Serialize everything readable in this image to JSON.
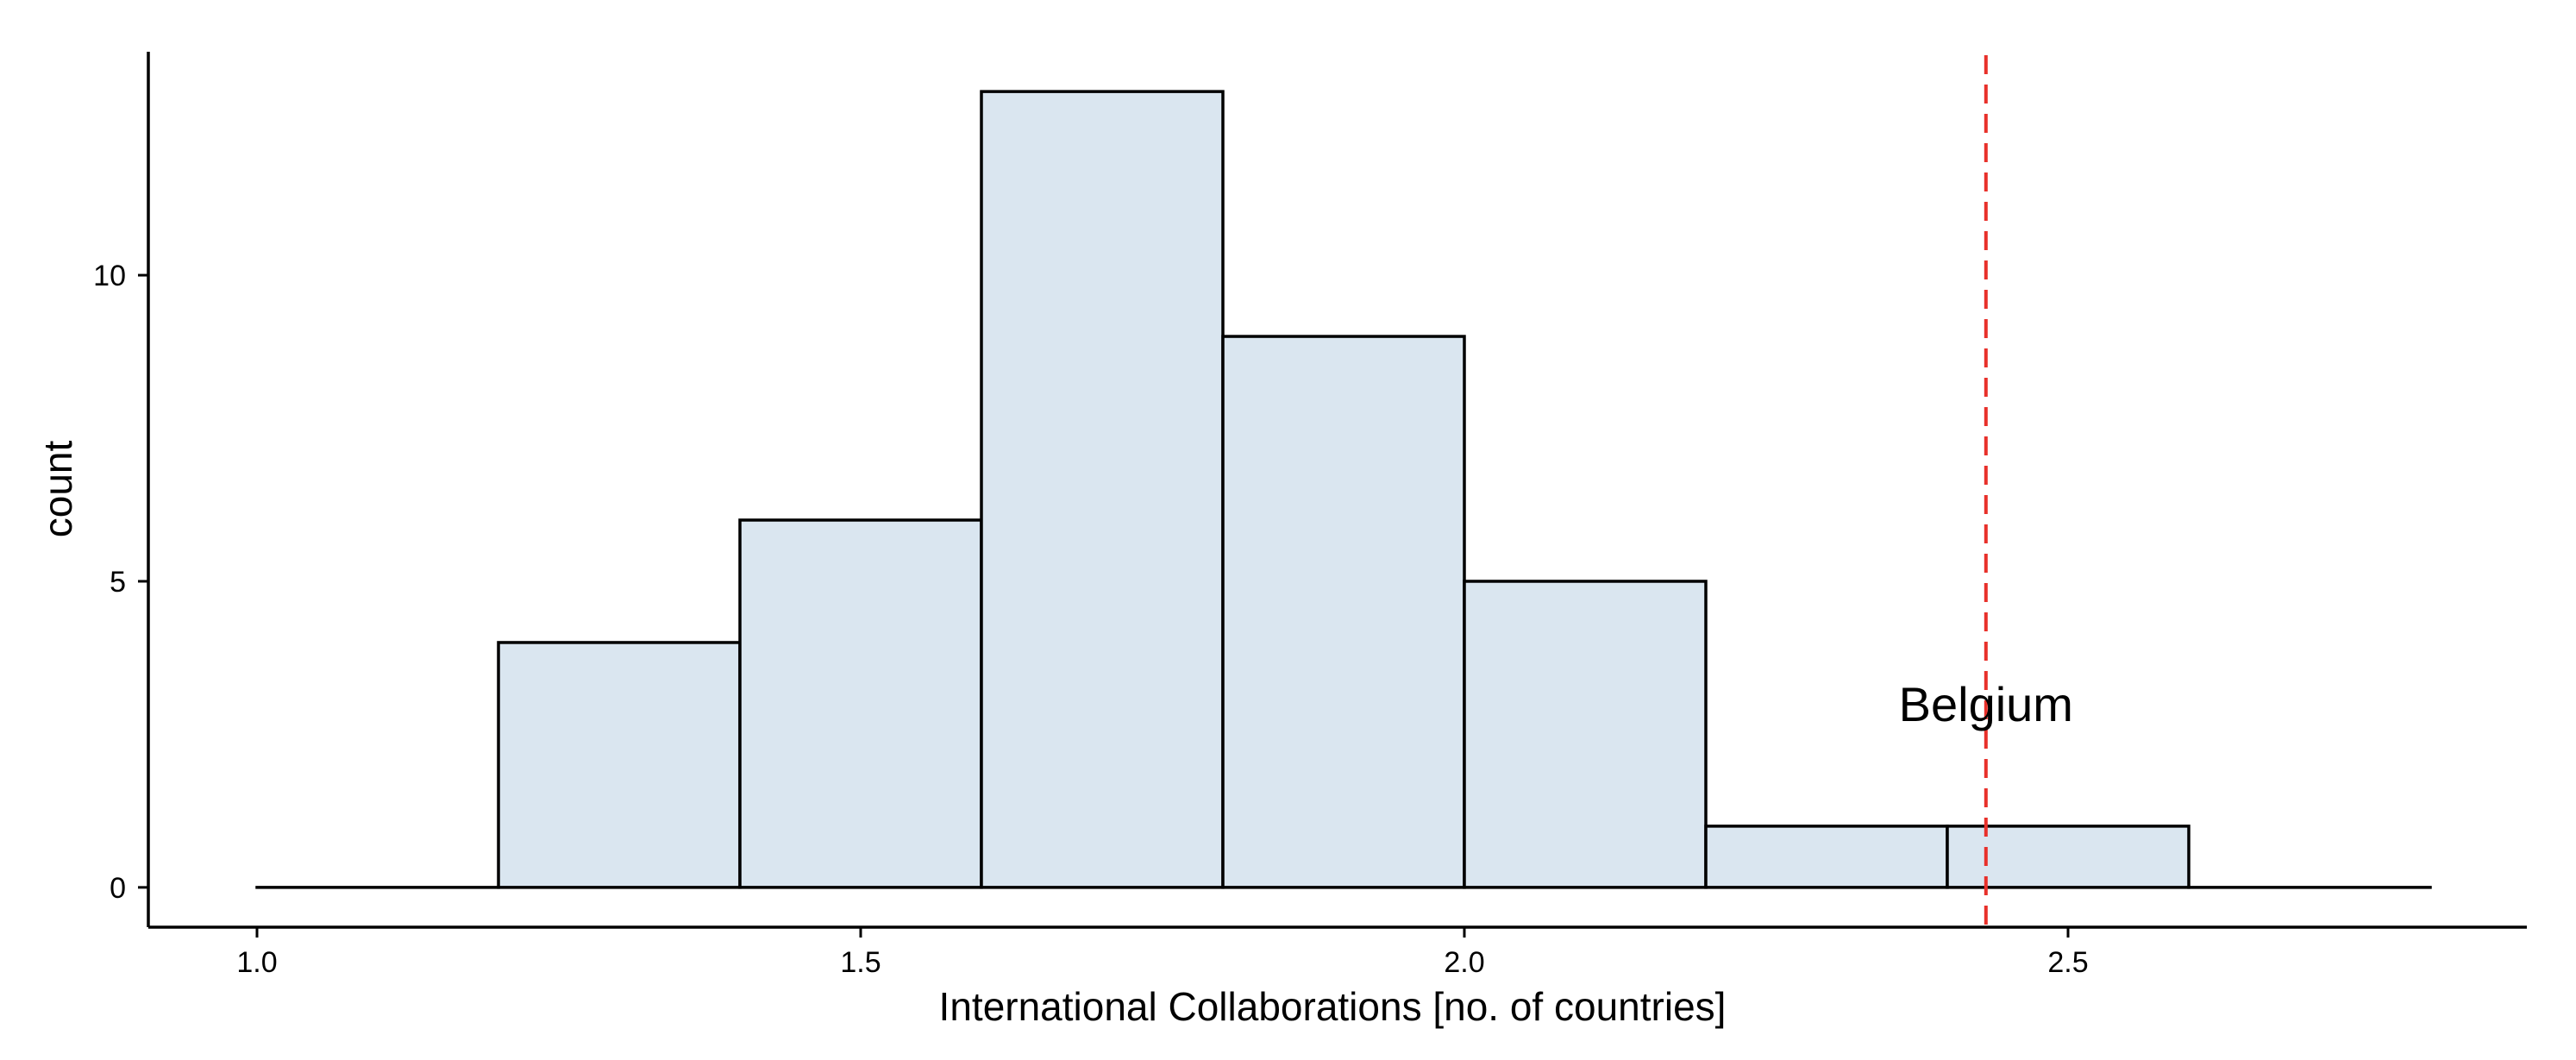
{
  "chart_data": {
    "type": "histogram",
    "title": "",
    "xlabel": "International Collaborations [no. of countries]",
    "ylabel": "count",
    "xlim": [
      0.91,
      2.88
    ],
    "ylim": [
      -0.65,
      13.65
    ],
    "x_ticks": [
      1.0,
      1.5,
      2.0,
      2.5
    ],
    "x_tick_labels": [
      "1.0",
      "1.5",
      "2.0",
      "2.5"
    ],
    "y_ticks": [
      0,
      5,
      10
    ],
    "y_tick_labels": [
      "0",
      "5",
      "10"
    ],
    "bin_edges": [
      1.0,
      1.2,
      1.4,
      1.6,
      1.8,
      2.0,
      2.2,
      2.4,
      2.6,
      2.8
    ],
    "counts": [
      0,
      4,
      6,
      13,
      9,
      5,
      1,
      1,
      0
    ],
    "bar_fill": "#dae6f0",
    "bar_stroke": "#000000",
    "reference_line": {
      "x": 2.432,
      "label": "Belgium",
      "label_y": 3.0,
      "color": "#e8302a",
      "style": "dashed"
    },
    "grid": false,
    "legend": "none"
  }
}
